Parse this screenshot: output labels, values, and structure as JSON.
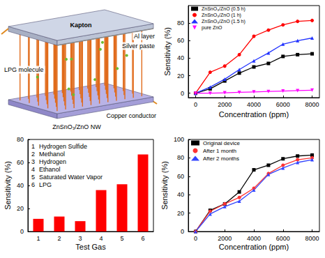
{
  "diagram": {
    "labels": {
      "top_film": "Kapton",
      "electrode": "Al layer",
      "contact": "Silver paste",
      "gas": "LPG molecule",
      "nanowires": "ZnSnO₃/ZnO NW",
      "substrate": "Copper conductor"
    }
  },
  "chart_data": [
    {
      "type": "line",
      "xlabel": "Concentration (ppm)",
      "ylabel": "Sensitivity (%)",
      "x": [
        0,
        1000,
        2000,
        3000,
        4000,
        5000,
        6000,
        7000,
        8000
      ],
      "series": [
        {
          "name": "ZnSnO₃/ZnO (0.5 h)",
          "color": "#000000",
          "marker": "square",
          "values": [
            0,
            5,
            14,
            23,
            30,
            34,
            42,
            44,
            45
          ]
        },
        {
          "name": "ZnSnO₃/ZnO (1 h)",
          "color": "#ff0000",
          "marker": "circle",
          "values": [
            0,
            24,
            31,
            44,
            65,
            72,
            78,
            82,
            83
          ]
        },
        {
          "name": "ZnSnO₃/ZnO (1.5 h)",
          "color": "#2233ff",
          "marker": "triangle",
          "values": [
            0,
            7,
            16,
            27,
            37,
            46,
            56,
            60,
            63
          ]
        },
        {
          "name": "pure ZnO",
          "color": "#ff00ff",
          "marker": "triangle-down",
          "values": [
            0,
            0,
            0.5,
            1,
            1.5,
            2,
            2.5,
            3,
            3.5
          ]
        }
      ],
      "xlim": [
        -500,
        8500
      ],
      "ylim": [
        -5,
        100
      ],
      "xticks": [
        0,
        2000,
        4000,
        6000,
        8000
      ],
      "yticks": [
        0,
        20,
        40,
        60,
        80
      ],
      "grid": false,
      "legend": "upper left"
    },
    {
      "type": "bar",
      "xlabel": "Test Gas",
      "ylabel": "Sensitivity (%)",
      "categories": [
        "1",
        "2",
        "3",
        "4",
        "5",
        "6"
      ],
      "values": [
        11,
        13,
        9,
        36,
        41,
        67
      ],
      "color": "#ff0000",
      "ylim": [
        0,
        80
      ],
      "yticks": [
        0,
        20,
        40,
        60,
        80
      ],
      "grid": false,
      "annotations": [
        {
          "label": "1",
          "text": "Hydrogen Sulfide"
        },
        {
          "label": "2",
          "text": "Methanol"
        },
        {
          "label": "3",
          "text": "Hydrogen"
        },
        {
          "label": "4",
          "text": "Ethanol"
        },
        {
          "label": "5",
          "text": "Saturated Water Vapor"
        },
        {
          "label": "6",
          "text": "LPG"
        }
      ]
    },
    {
      "type": "line",
      "xlabel": "Concentration (ppm)",
      "ylabel": "Sensitivity (%)",
      "x": [
        0,
        1000,
        2000,
        3000,
        4000,
        5000,
        6000,
        7000,
        8000
      ],
      "series": [
        {
          "name": "Original device",
          "color": "#000000",
          "marker": "square",
          "values": [
            0,
            23,
            30,
            43,
            67,
            72,
            79,
            82,
            83
          ]
        },
        {
          "name": "After 1 month",
          "color": "#ff3333",
          "marker": "circle",
          "values": [
            0,
            22,
            30,
            37,
            47,
            63,
            72,
            78,
            80
          ]
        },
        {
          "name": "After 2 months",
          "color": "#3344ff",
          "marker": "triangle",
          "values": [
            0,
            19,
            27,
            33,
            45,
            62,
            69,
            75,
            78
          ]
        }
      ],
      "xlim": [
        -500,
        8500
      ],
      "ylim": [
        0,
        100
      ],
      "xticks": [
        0,
        2000,
        4000,
        6000,
        8000
      ],
      "yticks": [
        0,
        20,
        40,
        60,
        80,
        100
      ],
      "grid": false,
      "legend": "upper left"
    }
  ]
}
